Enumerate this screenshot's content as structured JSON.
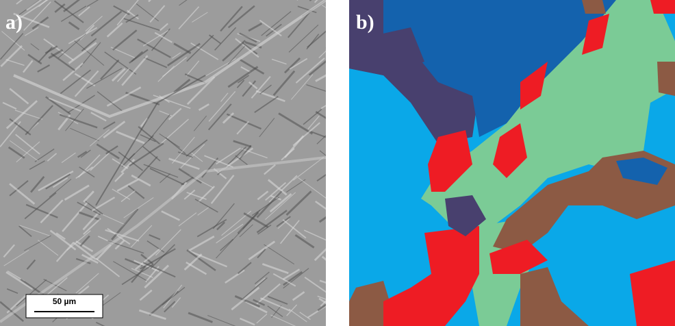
{
  "panels": [
    {
      "label": "a)",
      "scale_bar": "50 µm"
    },
    {
      "label": "b)"
    }
  ]
}
